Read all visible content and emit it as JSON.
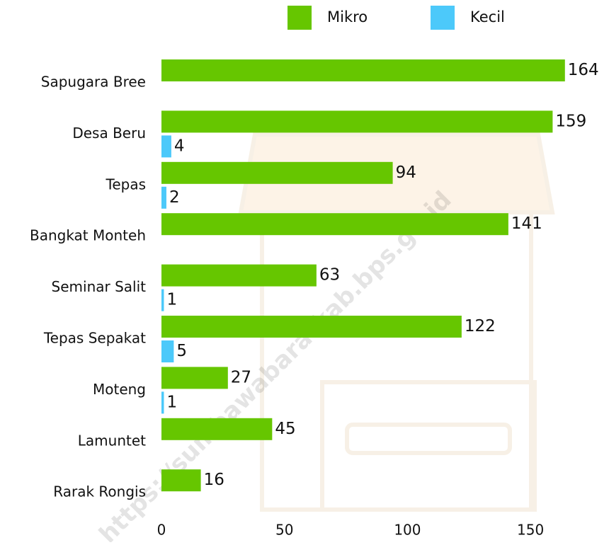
{
  "chart_data": {
    "type": "hbar",
    "categories": [
      "Sapugara Bree",
      "Desa Beru",
      "Tepas",
      "Bangkat Monteh",
      "Seminar Salit",
      "Tepas Sepakat",
      "Moteng",
      "Lamuntet",
      "Rarak Rongis"
    ],
    "series": [
      {
        "name": "Mikro",
        "color": "#66c600",
        "values": [
          164,
          159,
          94,
          141,
          63,
          122,
          27,
          45,
          16
        ]
      },
      {
        "name": "Kecil",
        "color": "#4cc9fa",
        "values": [
          null,
          4,
          2,
          null,
          1,
          5,
          1,
          null,
          null
        ]
      }
    ],
    "xlim": [
      0,
      175
    ],
    "xticks": [
      0,
      50,
      100,
      150
    ],
    "watermark": "https://sumbawabaratkab.bps.go.id"
  }
}
